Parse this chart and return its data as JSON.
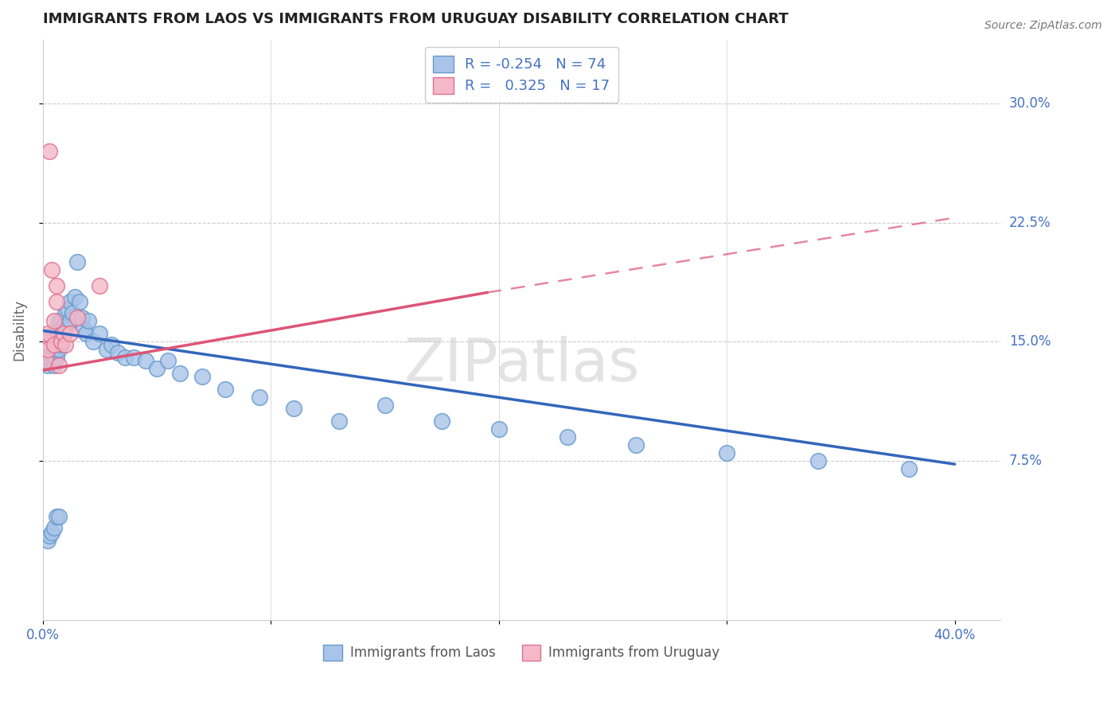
{
  "title": "IMMIGRANTS FROM LAOS VS IMMIGRANTS FROM URUGUAY DISABILITY CORRELATION CHART",
  "source": "Source: ZipAtlas.com",
  "ylabel": "Disability",
  "ytick_labels": [
    "7.5%",
    "15.0%",
    "22.5%",
    "30.0%"
  ],
  "ytick_values": [
    0.075,
    0.15,
    0.225,
    0.3
  ],
  "xlim": [
    0.0,
    0.42
  ],
  "ylim": [
    -0.025,
    0.34
  ],
  "laos_R": -0.254,
  "laos_N": 74,
  "uruguay_R": 0.325,
  "uruguay_N": 17,
  "laos_color": "#a8c4e8",
  "laos_edge": "#6699cc",
  "uruguay_color": "#f5b8c8",
  "uruguay_edge": "#e07090",
  "trend_laos_color": "#3366bb",
  "trend_uruguay_color": "#dd5577",
  "background_color": "#ffffff",
  "laos_x": [
    0.001,
    0.001,
    0.001,
    0.002,
    0.002,
    0.002,
    0.002,
    0.003,
    0.003,
    0.003,
    0.003,
    0.004,
    0.004,
    0.004,
    0.005,
    0.005,
    0.005,
    0.005,
    0.006,
    0.006,
    0.006,
    0.006,
    0.007,
    0.007,
    0.007,
    0.008,
    0.008,
    0.008,
    0.009,
    0.009,
    0.01,
    0.01,
    0.011,
    0.011,
    0.012,
    0.012,
    0.013,
    0.014,
    0.015,
    0.016,
    0.017,
    0.018,
    0.019,
    0.02,
    0.022,
    0.025,
    0.028,
    0.03,
    0.033,
    0.036,
    0.04,
    0.045,
    0.05,
    0.055,
    0.06,
    0.07,
    0.08,
    0.095,
    0.11,
    0.13,
    0.15,
    0.175,
    0.2,
    0.23,
    0.26,
    0.3,
    0.34,
    0.38,
    0.002,
    0.003,
    0.004,
    0.005,
    0.006,
    0.007
  ],
  "laos_y": [
    0.138,
    0.142,
    0.148,
    0.135,
    0.14,
    0.145,
    0.15,
    0.138,
    0.143,
    0.148,
    0.152,
    0.138,
    0.143,
    0.15,
    0.135,
    0.14,
    0.145,
    0.155,
    0.14,
    0.145,
    0.15,
    0.158,
    0.145,
    0.15,
    0.163,
    0.148,
    0.155,
    0.163,
    0.155,
    0.16,
    0.16,
    0.168,
    0.16,
    0.17,
    0.163,
    0.175,
    0.168,
    0.178,
    0.2,
    0.175,
    0.165,
    0.158,
    0.155,
    0.163,
    0.15,
    0.155,
    0.145,
    0.148,
    0.143,
    0.14,
    0.14,
    0.138,
    0.133,
    0.138,
    0.13,
    0.128,
    0.12,
    0.115,
    0.108,
    0.1,
    0.11,
    0.1,
    0.095,
    0.09,
    0.085,
    0.08,
    0.075,
    0.07,
    0.025,
    0.028,
    0.03,
    0.033,
    0.04,
    0.04
  ],
  "uruguay_x": [
    0.001,
    0.001,
    0.002,
    0.002,
    0.003,
    0.004,
    0.005,
    0.005,
    0.006,
    0.006,
    0.007,
    0.008,
    0.009,
    0.01,
    0.012,
    0.015,
    0.025
  ],
  "uruguay_y": [
    0.138,
    0.15,
    0.145,
    0.155,
    0.27,
    0.195,
    0.148,
    0.163,
    0.175,
    0.185,
    0.135,
    0.15,
    0.155,
    0.148,
    0.155,
    0.165,
    0.185
  ],
  "trend_laos_x0": 0.0,
  "trend_laos_x1": 0.4,
  "trend_laos_y0": 0.157,
  "trend_laos_y1": 0.073,
  "trend_uru_x0": 0.0,
  "trend_uru_x1": 0.4,
  "trend_uru_y0": 0.132,
  "trend_uru_y1": 0.228,
  "trend_uru_solid_end_x": 0.195,
  "trend_uru_solid_end_y": 0.181
}
